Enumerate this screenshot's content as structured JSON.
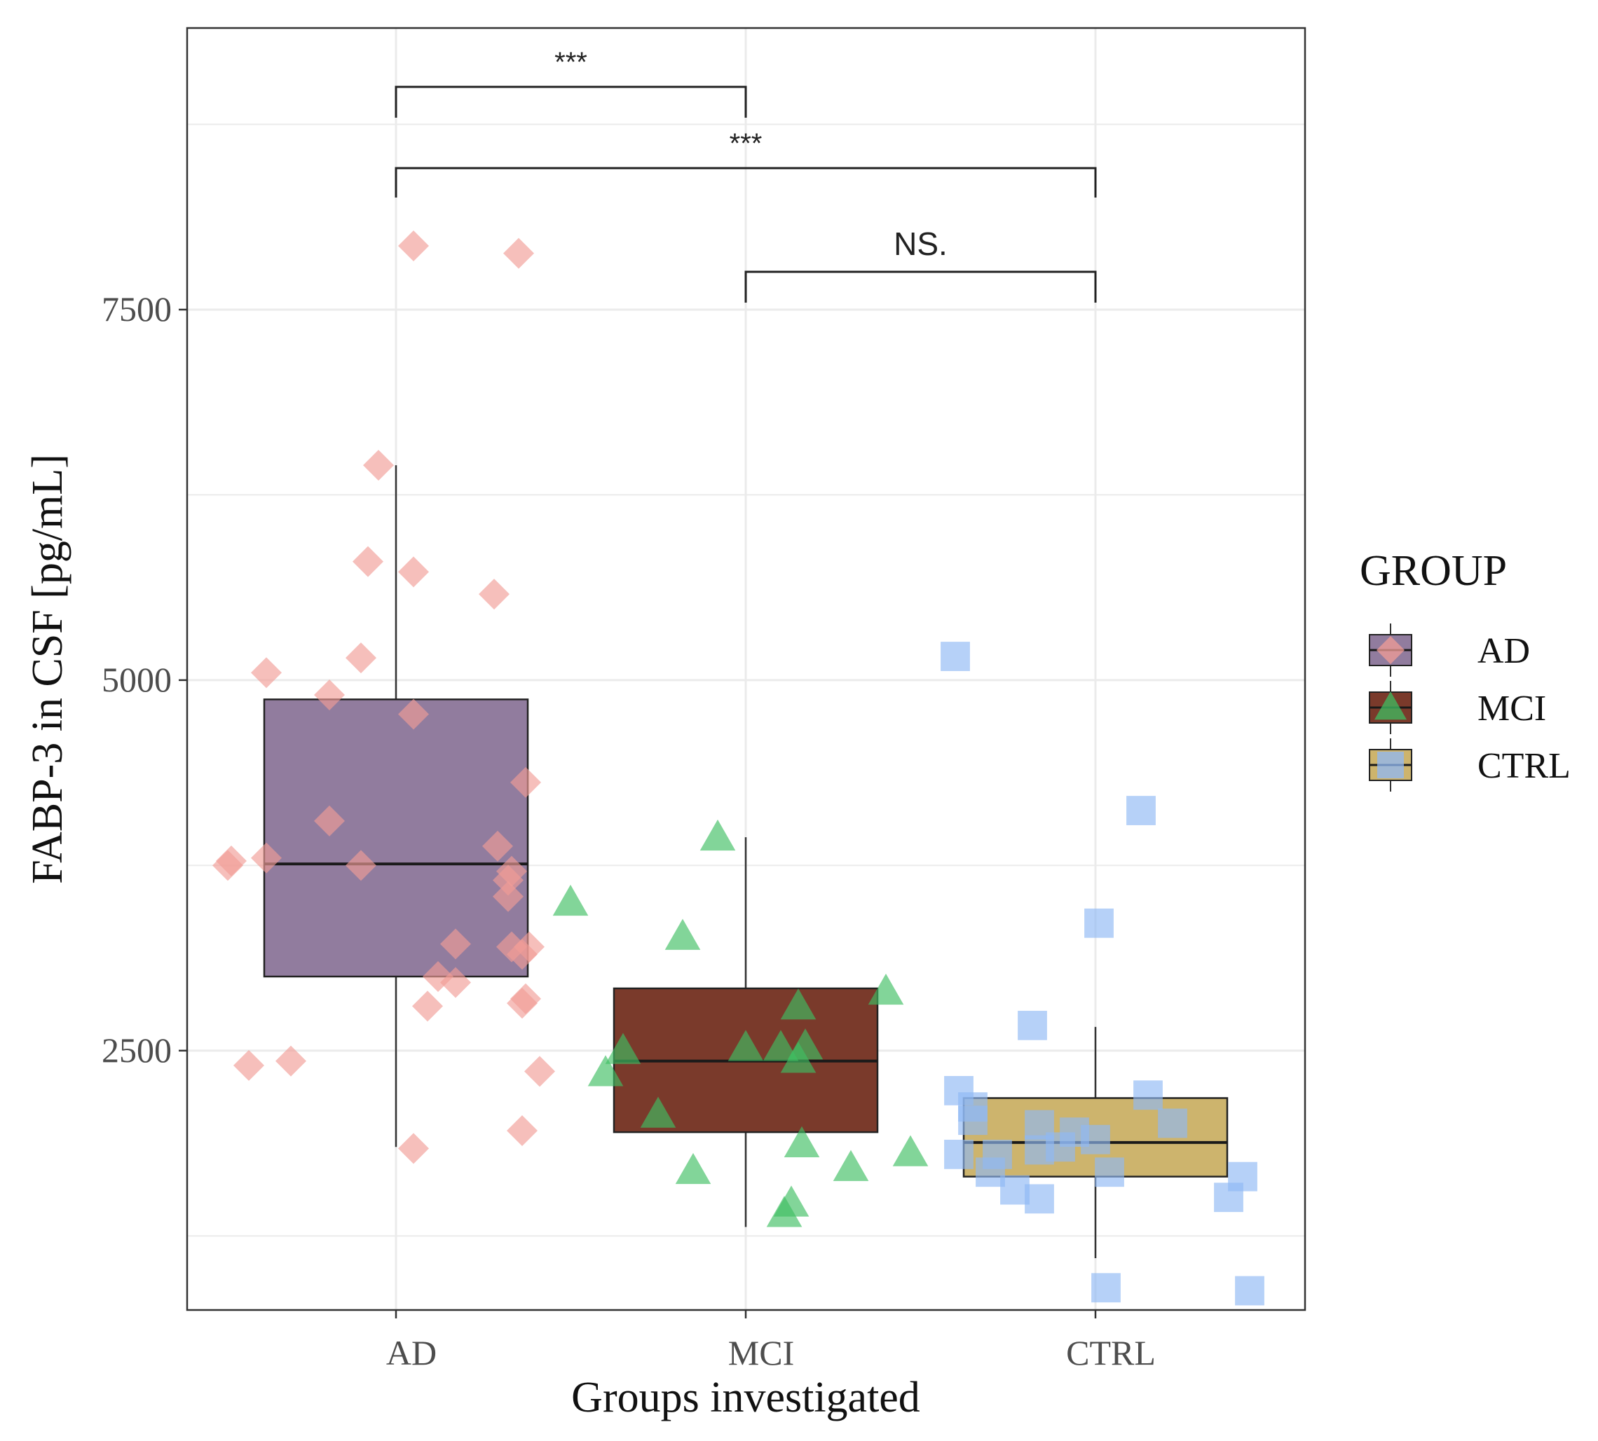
{
  "chart_data": {
    "type": "box",
    "title": "",
    "xlabel": "Groups investigated",
    "ylabel": "FABP-3 in CSF [pg/mL]",
    "ylim": [
      750,
      9400
    ],
    "yticks": [
      2500,
      5000,
      7500
    ],
    "categories": [
      "AD",
      "MCI",
      "CTRL"
    ],
    "grid": true,
    "legend": {
      "title": "GROUP",
      "position": "right",
      "entries": [
        "AD",
        "MCI",
        "CTRL"
      ]
    },
    "series": [
      {
        "name": "AD",
        "box_fill": "#917c9e",
        "point_color": "#f19c96",
        "marker": "diamond",
        "whisker_low": 1850,
        "q1": 3000,
        "median": 3760,
        "q3": 4870,
        "whisker_high": 6450,
        "points": [
          [
            -0.48,
            3750
          ],
          [
            -0.47,
            3780
          ],
          [
            -0.37,
            3800
          ],
          [
            -0.42,
            2400
          ],
          [
            -0.3,
            2430
          ],
          [
            -0.37,
            5050
          ],
          [
            -0.19,
            4900
          ],
          [
            -0.19,
            4050
          ],
          [
            -0.1,
            3750
          ],
          [
            -0.1,
            5150
          ],
          [
            -0.08,
            5800
          ],
          [
            -0.05,
            6450
          ],
          [
            0.05,
            7930
          ],
          [
            0.05,
            5730
          ],
          [
            0.05,
            4770
          ],
          [
            0.09,
            2800
          ],
          [
            0.12,
            3000
          ],
          [
            0.17,
            2960
          ],
          [
            0.17,
            3220
          ],
          [
            0.05,
            1840
          ],
          [
            0.28,
            5580
          ],
          [
            0.29,
            3880
          ],
          [
            0.32,
            3650
          ],
          [
            0.32,
            3540
          ],
          [
            0.33,
            3710
          ],
          [
            0.33,
            3200
          ],
          [
            0.36,
            3150
          ],
          [
            0.38,
            3200
          ],
          [
            0.37,
            2850
          ],
          [
            0.36,
            2820
          ],
          [
            0.36,
            1960
          ],
          [
            0.37,
            4310
          ],
          [
            0.41,
            2360
          ],
          [
            0.35,
            7880
          ]
        ]
      },
      {
        "name": "MCI",
        "box_fill": "#7a3a2b",
        "point_color": "#3fbe62",
        "marker": "triangle",
        "whisker_low": 1310,
        "q1": 1950,
        "median": 2430,
        "q3": 2920,
        "whisker_high": 3940,
        "points": [
          [
            -0.5,
            3500
          ],
          [
            -0.4,
            2350
          ],
          [
            -0.35,
            2500
          ],
          [
            -0.25,
            2070
          ],
          [
            -0.18,
            3270
          ],
          [
            -0.15,
            1690
          ],
          [
            -0.08,
            3940
          ],
          [
            0.0,
            2520
          ],
          [
            0.1,
            2520
          ],
          [
            0.11,
            1400
          ],
          [
            0.13,
            1470
          ],
          [
            0.15,
            2440
          ],
          [
            0.15,
            2800
          ],
          [
            0.16,
            1870
          ],
          [
            0.17,
            2530
          ],
          [
            0.3,
            1710
          ],
          [
            0.4,
            2900
          ],
          [
            0.47,
            1810
          ]
        ]
      },
      {
        "name": "CTRL",
        "box_fill": "#cdb46d",
        "point_color": "#8fb8f5",
        "marker": "square",
        "whisker_low": 1100,
        "q1": 1650,
        "median": 1880,
        "q3": 2180,
        "whisker_high": 2660,
        "points": [
          [
            -0.4,
            5160
          ],
          [
            -0.39,
            2230
          ],
          [
            -0.39,
            1800
          ],
          [
            -0.35,
            2120
          ],
          [
            -0.35,
            2030
          ],
          [
            -0.3,
            1680
          ],
          [
            -0.28,
            1800
          ],
          [
            -0.23,
            1560
          ],
          [
            -0.18,
            2670
          ],
          [
            -0.16,
            1830
          ],
          [
            -0.16,
            2000
          ],
          [
            -0.16,
            1500
          ],
          [
            -0.1,
            1850
          ],
          [
            -0.06,
            1950
          ],
          [
            0.0,
            1900
          ],
          [
            0.01,
            3360
          ],
          [
            0.03,
            900
          ],
          [
            0.04,
            1680
          ],
          [
            0.13,
            4120
          ],
          [
            0.15,
            2200
          ],
          [
            0.22,
            2010
          ],
          [
            0.38,
            1510
          ],
          [
            0.42,
            1650
          ],
          [
            0.44,
            880
          ]
        ]
      }
    ],
    "annotations": [
      {
        "from": "AD",
        "to": "MCI",
        "label": "***"
      },
      {
        "from": "AD",
        "to": "CTRL",
        "label": "***"
      },
      {
        "from": "MCI",
        "to": "CTRL",
        "label": "NS."
      }
    ]
  }
}
